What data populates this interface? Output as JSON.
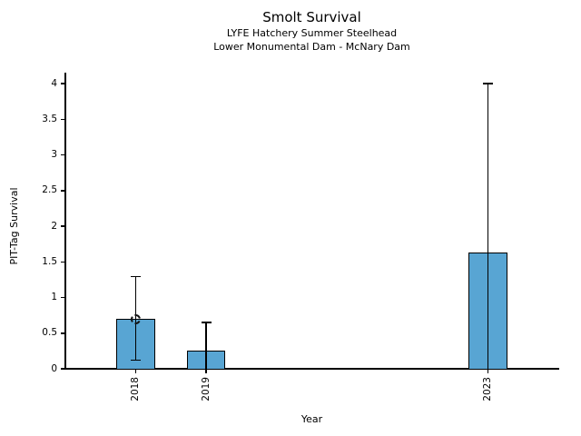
{
  "figure": {
    "title": "Smolt Survival",
    "subtitle1": "LYFE Hatchery Summer Steelhead",
    "subtitle2": "Lower Monumental Dam - McNary Dam",
    "xlabel": "Year",
    "ylabel": "PIT-Tag Survival"
  },
  "chart_data": {
    "type": "bar",
    "title": "Smolt Survival",
    "subtitle": [
      "LYFE Hatchery Summer Steelhead",
      "Lower Monumental Dam - McNary Dam"
    ],
    "xlabel": "Year",
    "ylabel": "PIT-Tag Survival",
    "categories": [
      "2018",
      "2019",
      "2023"
    ],
    "x": [
      2018,
      2019,
      2023
    ],
    "values": [
      0.7,
      0.26,
      1.63
    ],
    "error_upper": [
      1.29,
      0.65,
      4.0
    ],
    "error_lower": [
      0.12,
      0.0,
      0.0
    ],
    "bar_width_years": 0.55,
    "bar_fill_color": "#58A5D3",
    "bar_edge_color": "#000000",
    "xlim": [
      2017,
      2024
    ],
    "ylim": [
      0,
      4.15
    ],
    "ytick_values": [
      0,
      0.5,
      1,
      1.5,
      2,
      2.5,
      3,
      3.5,
      4
    ],
    "ytick_labels": [
      "0",
      "0.5",
      "1",
      "1.5",
      "2",
      "2.5",
      "3",
      "3.5",
      "4"
    ],
    "grid": false,
    "legend": null
  },
  "cursor": {
    "present": true,
    "target": "top of 2018 bar"
  }
}
